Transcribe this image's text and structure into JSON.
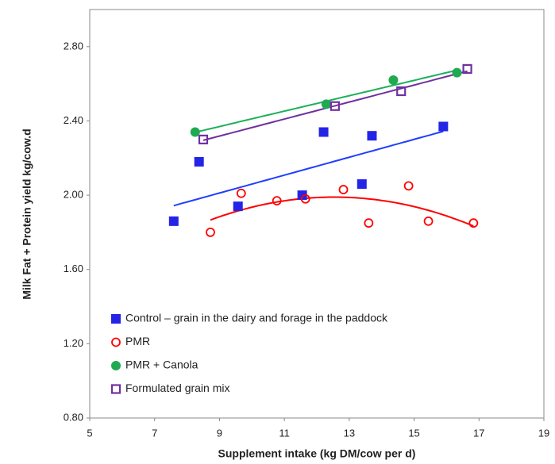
{
  "chart_data": {
    "type": "scatter",
    "x_label": "Supplement intake (kg DM/cow per d)",
    "y_label": "Milk Fat + Protein yield kg/cow.d",
    "xlim": [
      5,
      19
    ],
    "xticks": [
      5,
      7,
      9,
      11,
      13,
      15,
      17,
      19
    ],
    "ylim": [
      0.8,
      3.0
    ],
    "yticks": [
      {
        "value": 0.8,
        "label": "0.80"
      },
      {
        "value": 1.2,
        "label": "1.20"
      },
      {
        "value": 1.6,
        "label": "1.60"
      },
      {
        "value": 2.0,
        "label": "2.00"
      },
      {
        "value": 2.4,
        "label": "2.40"
      },
      {
        "value": 2.8,
        "label": "2.80"
      }
    ],
    "grid": false,
    "legend": "lower left",
    "series": [
      {
        "name": "Control – grain in the dairy and forage in the paddock",
        "color": "#2424e6",
        "line_color": "#1f3fff",
        "marker": "square",
        "trend": "linear",
        "x": [
          7.59,
          8.37,
          9.57,
          11.55,
          12.21,
          13.39,
          13.7,
          15.9
        ],
        "values": [
          1.86,
          2.18,
          1.94,
          2.0,
          2.34,
          2.06,
          2.32,
          2.37
        ]
      },
      {
        "name": "PMR",
        "color": "#ff0000",
        "line_color": "#ff0000",
        "marker": "circle-open",
        "trend": "quadratic",
        "x": [
          8.72,
          9.67,
          10.77,
          11.65,
          12.82,
          13.6,
          14.83,
          15.44,
          16.83
        ],
        "values": [
          1.8,
          2.01,
          1.97,
          1.98,
          2.03,
          1.85,
          2.05,
          1.86,
          1.85
        ]
      },
      {
        "name": "PMR + Canola",
        "color": "#1faa52",
        "line_color": "#1db05a",
        "marker": "circle",
        "trend": "linear",
        "x": [
          8.25,
          12.29,
          14.36,
          16.32
        ],
        "values": [
          2.34,
          2.49,
          2.62,
          2.66
        ]
      },
      {
        "name": "Formulated grain mix",
        "color": "#7030a0",
        "line_color": "#7030a0",
        "marker": "square-open",
        "trend": "linear",
        "x": [
          8.5,
          12.56,
          14.6,
          16.64
        ],
        "values": [
          2.3,
          2.48,
          2.56,
          2.68
        ]
      }
    ]
  }
}
